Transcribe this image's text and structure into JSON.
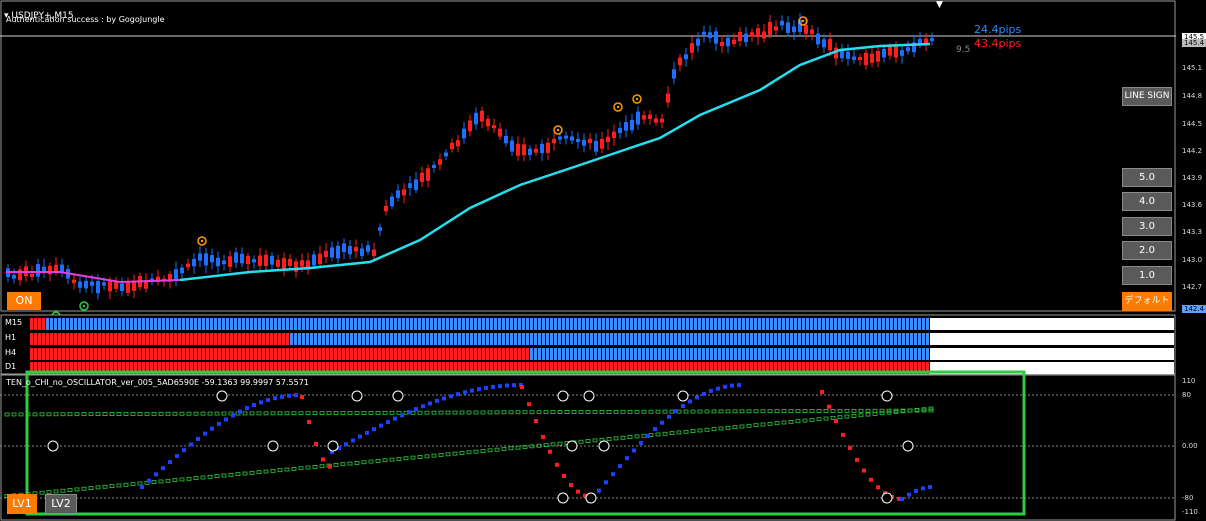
{
  "chart": {
    "symbol_title": "USDJPY+,M15",
    "auth_text": "Authentication success : by GogoJungle",
    "pips_blue": "24.4pips",
    "pips_red": "43.4pips",
    "pips_gray": "9.5",
    "price_axis": [
      "145.5",
      "145.4",
      "145.1",
      "144.8",
      "144.5",
      "144.2",
      "143.9",
      "143.6",
      "143.3",
      "143.0",
      "142.7",
      "142.4"
    ],
    "colors": {
      "bull": "#1e6fff",
      "bear": "#ff1e1e",
      "ma": "#22e0f0",
      "ma_early": "#e040e0"
    }
  },
  "buttons": {
    "line_sign": "LINE SIGN",
    "levels": [
      "5.0",
      "4.0",
      "3.0",
      "2.0",
      "1.0"
    ],
    "default": "デフォルト",
    "on": "ON",
    "lv1": "LV1",
    "lv2": "LV2"
  },
  "timeframes": [
    "M15",
    "H1",
    "H4",
    "D1"
  ],
  "oscillator": {
    "title": "TEN_o_CHI_no_OSCILLATOR_ver_005_5AD6590E -59.1363 99.9997 57.5571",
    "axis": [
      "110",
      "80",
      "0.00",
      "-80",
      "-110"
    ]
  },
  "icons": {
    "signal": "circle-arrow-icon",
    "menu": "triangle-down-icon"
  }
}
